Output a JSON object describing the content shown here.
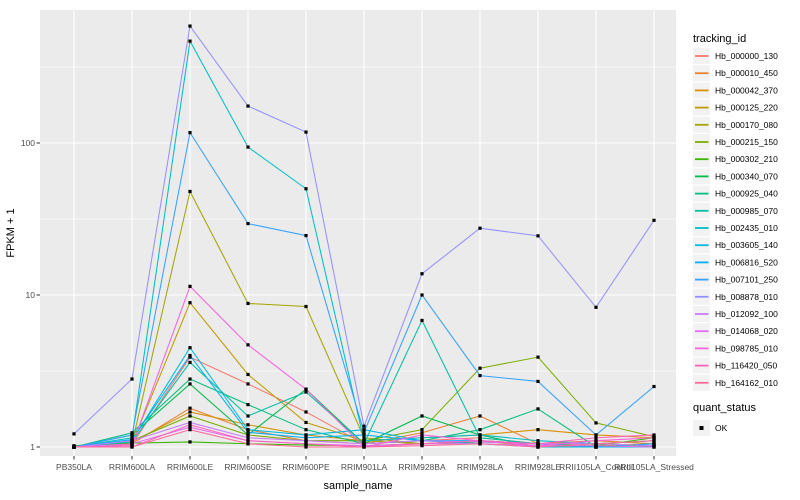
{
  "chart_data": {
    "type": "line",
    "title": "",
    "xlabel": "sample_name",
    "ylabel": "FPKM + 1",
    "y_scale": "log10",
    "y_ticks": [
      1,
      10,
      100
    ],
    "y_tick_labels": [
      "1",
      "10",
      "100"
    ],
    "ylim": [
      0.89,
      750
    ],
    "grid": true,
    "legend_position": "right",
    "point_marker": "black-square",
    "categories": [
      "PB350LA",
      "RRIM600LA",
      "RRIM600LE",
      "RRIM600SE",
      "RRIM600PE",
      "RRIM901LA",
      "RRIM928BA",
      "RRIM928LA",
      "RRIM928LE",
      "RRII105LA_Control",
      "RRII105LA_Stressed"
    ],
    "series": [
      {
        "name": "Hb_000000_130",
        "color": "#F8766D",
        "values": [
          1.0,
          1.04,
          3.9,
          2.6,
          1.7,
          1.05,
          1.1,
          1.15,
          1.05,
          1.05,
          1.1
        ]
      },
      {
        "name": "Hb_000010_450",
        "color": "#EA8331",
        "values": [
          1.0,
          1.05,
          1.8,
          1.3,
          1.1,
          1.05,
          1.24,
          1.6,
          1.05,
          1.1,
          1.05
        ]
      },
      {
        "name": "Hb_000042_370",
        "color": "#D89000",
        "values": [
          1.0,
          1.08,
          1.7,
          1.4,
          1.2,
          1.1,
          1.15,
          1.2,
          1.3,
          1.2,
          1.15
        ]
      },
      {
        "name": "Hb_000125_220",
        "color": "#C09B00",
        "values": [
          1.0,
          1.05,
          8.9,
          3.0,
          1.45,
          1.1,
          1.05,
          1.1,
          1.05,
          1.0,
          1.02
        ]
      },
      {
        "name": "Hb_000170_080",
        "color": "#A3A500",
        "values": [
          1.0,
          1.05,
          48,
          8.8,
          8.4,
          1.15,
          1.05,
          1.1,
          1.0,
          1.02,
          1.05
        ]
      },
      {
        "name": "Hb_000215_150",
        "color": "#7CAE00",
        "values": [
          1.0,
          1.1,
          1.6,
          1.2,
          1.1,
          1.1,
          1.3,
          3.3,
          3.9,
          1.44,
          1.17
        ]
      },
      {
        "name": "Hb_000302_210",
        "color": "#39B600",
        "values": [
          1.02,
          1.06,
          1.08,
          1.05,
          1.03,
          1.02,
          1.05,
          1.08,
          1.05,
          1.02,
          1.15
        ]
      },
      {
        "name": "Hb_000340_070",
        "color": "#00BB4E",
        "values": [
          1.0,
          1.2,
          2.6,
          1.2,
          2.4,
          1.05,
          1.6,
          1.2,
          1.0,
          1.0,
          1.0
        ]
      },
      {
        "name": "Hb_000925_040",
        "color": "#00BF7D",
        "values": [
          1.0,
          1.24,
          2.8,
          1.9,
          1.3,
          1.05,
          1.1,
          1.3,
          1.78,
          1.0,
          1.02
        ]
      },
      {
        "name": "Hb_000985_070",
        "color": "#00C1A3",
        "values": [
          1.0,
          1.08,
          3.6,
          1.6,
          2.3,
          1.05,
          6.8,
          1.15,
          1.05,
          1.0,
          1.05
        ]
      },
      {
        "name": "Hb_002435_010",
        "color": "#00BFC4",
        "values": [
          1.0,
          1.15,
          468,
          94,
          50,
          1.1,
          1.15,
          1.2,
          1.1,
          1.05,
          1.1
        ]
      },
      {
        "name": "Hb_003605_140",
        "color": "#00BAE0",
        "values": [
          1.0,
          1.1,
          4.5,
          1.3,
          1.2,
          1.3,
          1.1,
          1.05,
          1.0,
          1.0,
          1.0
        ]
      },
      {
        "name": "Hb_006816_520",
        "color": "#00B0F6",
        "values": [
          1.0,
          1.12,
          4.0,
          1.25,
          1.15,
          1.2,
          1.1,
          1.1,
          1.05,
          1.0,
          1.05
        ]
      },
      {
        "name": "Hb_007101_250",
        "color": "#35A2FF",
        "values": [
          1.0,
          1.2,
          117,
          29.5,
          24.6,
          1.25,
          10,
          2.95,
          2.7,
          1.2,
          2.5
        ]
      },
      {
        "name": "Hb_008878_010",
        "color": "#9590FF",
        "values": [
          1.22,
          2.8,
          588,
          175,
          118,
          1.37,
          13.8,
          27.5,
          24.5,
          8.3,
          31
        ]
      },
      {
        "name": "Hb_012092_100",
        "color": "#C77CFF",
        "values": [
          1.0,
          1.1,
          1.45,
          1.15,
          1.1,
          1.05,
          1.1,
          1.08,
          1.05,
          1.05,
          1.02
        ]
      },
      {
        "name": "Hb_014068_020",
        "color": "#E76BF3",
        "values": [
          1.0,
          1.05,
          1.35,
          1.1,
          1.05,
          1.02,
          1.05,
          1.05,
          1.02,
          1.02,
          1.0
        ]
      },
      {
        "name": "Hb_098785_010",
        "color": "#FA62DB",
        "values": [
          1.0,
          1.02,
          11.4,
          4.7,
          2.4,
          1.0,
          1.2,
          1.1,
          1.02,
          1.1,
          1.15
        ]
      },
      {
        "name": "Hb_116420_050",
        "color": "#FF62BC",
        "values": [
          1.0,
          1.0,
          1.4,
          1.1,
          1.05,
          1.0,
          1.05,
          1.1,
          1.05,
          1.15,
          1.2
        ]
      },
      {
        "name": "Hb_164162_010",
        "color": "#FF6A98",
        "values": [
          1.0,
          1.0,
          1.3,
          1.05,
          1.0,
          1.0,
          1.02,
          1.05,
          1.0,
          1.05,
          1.1
        ]
      }
    ],
    "legend": {
      "color_title": "tracking_id",
      "shape_title": "quant_status",
      "shape_items": [
        {
          "label": "OK",
          "marker": "black-square"
        }
      ]
    },
    "colors": {
      "panel_background": "#EBEBEB",
      "gridline": "#FFFFFF",
      "tick_label": "#4D4D4D",
      "tick_mark": "#333333",
      "axis_title": "#000000",
      "legend_key_background": "#F2F2F2",
      "point": "#000000"
    }
  }
}
